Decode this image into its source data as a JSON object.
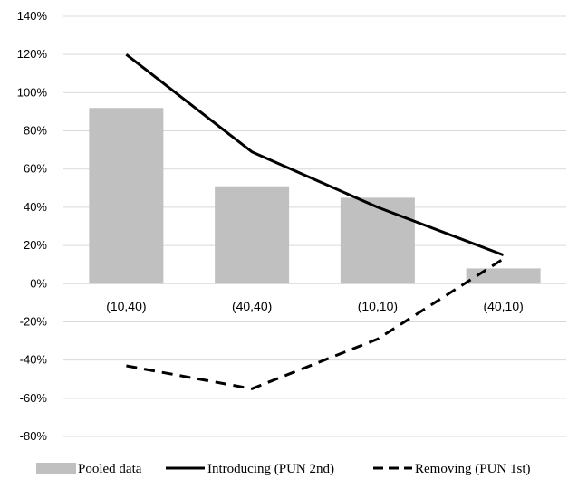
{
  "chart_data": {
    "type": "bar",
    "categories": [
      "(10,40)",
      "(40,40)",
      "(10,10)",
      "(40,10)"
    ],
    "ylim": [
      -80,
      140
    ],
    "yticks": [
      "140%",
      "120%",
      "100%",
      "80%",
      "60%",
      "40%",
      "20%",
      "0%",
      "-20%",
      "-40%",
      "-60%",
      "-80%"
    ],
    "ytick_values": [
      140,
      120,
      100,
      80,
      60,
      40,
      20,
      0,
      -20,
      -40,
      -60,
      -80
    ],
    "grid": true,
    "legend_position": "bottom",
    "series": [
      {
        "name": "Pooled data",
        "kind": "bar",
        "values": [
          92,
          51,
          45,
          8
        ],
        "color": "#c0c0c0"
      },
      {
        "name": "Introducing (PUN 2nd)",
        "kind": "line",
        "style": "solid",
        "values": [
          120,
          69,
          40,
          15
        ],
        "color": "#000000"
      },
      {
        "name": "Removing (PUN 1st)",
        "kind": "line",
        "style": "dashed",
        "values": [
          -43,
          -55,
          -29,
          13
        ],
        "color": "#000000"
      }
    ]
  }
}
